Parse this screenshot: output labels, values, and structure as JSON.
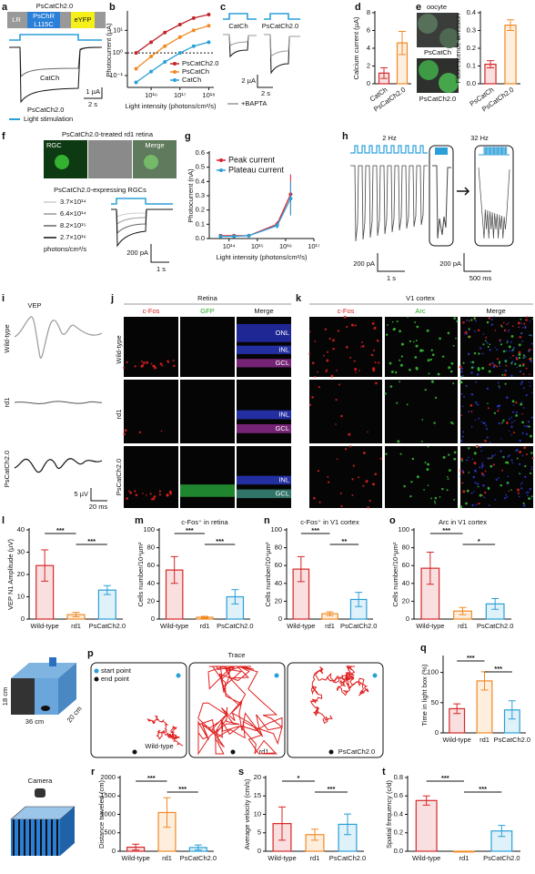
{
  "panel_a": {
    "label": "a",
    "title": "PsCatCh2.0",
    "construct": [
      "LR",
      "PsChR",
      "L115C",
      "eYFP"
    ],
    "traces": [
      "CatCh",
      "PsCatCh2.0"
    ],
    "scale": [
      "1 µA",
      "2 s"
    ],
    "legend": "Light stimulation"
  },
  "panel_c": {
    "label": "c",
    "traces": [
      "CatCh",
      "PsCatCh2.0"
    ],
    "scale": [
      "2 µA",
      "2 s"
    ],
    "legend": "+BAPTA"
  },
  "panel_e": {
    "images": [
      "oocyte",
      "PsCatCh",
      "PsCatCh2.0"
    ]
  },
  "panel_f": {
    "label": "f",
    "title": "PsCatCh2.0-treated rd1 retina",
    "images": [
      "RGC",
      "Merge"
    ],
    "subtitle": "PsCatCh2.0-expressing RGCs",
    "intensities": [
      "3.7×10¹⁴",
      "6.4×10¹⁴",
      "8.2×10¹⁵",
      "2.7×10¹⁶"
    ],
    "unit": "photons/cm²/s",
    "scale": [
      "200 pA",
      "1 s"
    ]
  },
  "panel_h": {
    "label": "h",
    "rates": [
      "2 Hz",
      "32 Hz"
    ],
    "scale": [
      "200 pA",
      "1 s",
      "200 pA",
      "500 ms"
    ]
  },
  "panel_i": {
    "label": "i",
    "title": "VEP",
    "rows": [
      "Wild-type",
      "rd1",
      "PsCatCh2.0"
    ],
    "scale": [
      "5 µV",
      "20 ms"
    ]
  },
  "panel_j": {
    "label": "j",
    "title": "Retina",
    "columns": [
      "c-Fos",
      "GFP",
      "Merge"
    ],
    "rows": [
      "Wild-type",
      "rd1",
      "PsCatCh2.0"
    ],
    "layers": [
      "ONL",
      "INL",
      "GCL",
      "INL",
      "GCL",
      "INL",
      "GCL"
    ]
  },
  "panel_k": {
    "label": "k",
    "title": "V1 cortex",
    "columns": [
      "c-Fos",
      "Arc",
      "Merge"
    ]
  },
  "panel_p": {
    "label": "p",
    "title": "Trace",
    "legend": [
      "start point",
      "end point"
    ],
    "groups": [
      "Wild-type",
      "rd1",
      "PsCatCh2.0"
    ]
  },
  "box": {
    "dims": [
      "18 cm",
      "36 cm",
      "20 cm"
    ],
    "camera": "Camera"
  },
  "charts": [
    {
      "label": "b",
      "type": "line",
      "ylabel": "Photocurrent (µA)",
      "xlabel": "Light intensity (photons/cm²/s)",
      "xscale": "log",
      "yscale": "log",
      "x": [
        3000000000000000.0,
        1e+16,
        3e+16,
        1e+17,
        3e+17,
        1e+18
      ],
      "xlim": [
        1500000000000000.0,
        1.5e+18
      ],
      "xticks": [
        {
          "value": 1e+16,
          "label": "10¹⁶"
        },
        {
          "value": 1e+17,
          "label": "10¹⁷"
        },
        {
          "value": 1e+18,
          "label": "10¹⁸"
        }
      ],
      "ylim": [
        0.03,
        60
      ],
      "yticks": [
        {
          "value": 0.1,
          "label": "10⁻¹"
        },
        {
          "value": 1,
          "label": "10⁰"
        },
        {
          "value": 10,
          "label": "10¹"
        }
      ],
      "hline": 1,
      "legend": "lower right",
      "series": [
        {
          "name": "PsCatCh2.0",
          "color": "#c0272d",
          "values": [
            1,
            3,
            8,
            18,
            35,
            50
          ]
        },
        {
          "name": "PsCatCh",
          "color": "#f08a24",
          "values": [
            0.2,
            0.7,
            2,
            5,
            10,
            16
          ]
        },
        {
          "name": "CatCh",
          "color": "#2a9fd8",
          "values": [
            0.05,
            0.15,
            0.4,
            1,
            2,
            3
          ]
        }
      ]
    },
    {
      "label": "d",
      "type": "bar",
      "ylabel": "Calcium current (µA)",
      "categories": [
        "CatCh",
        "PsCatCh2.0"
      ],
      "values": [
        1.2,
        4.6
      ],
      "errors": [
        0.6,
        1.3
      ],
      "colors": [
        "#d62728",
        "#f08a24"
      ],
      "ylim": [
        0,
        8
      ],
      "yticks": [
        0,
        2,
        4,
        6,
        8
      ],
      "annotations": []
    },
    {
      "label": "e",
      "type": "bar",
      "ylabel": "Fluorescence emission",
      "categories": [
        "PsCatCh",
        "PsCatCh2.0"
      ],
      "values": [
        0.11,
        0.33
      ],
      "errors": [
        0.02,
        0.03
      ],
      "colors": [
        "#d62728",
        "#f08a24"
      ],
      "ylim": [
        0,
        0.4
      ],
      "yticks": [
        {
          "value": 0,
          "label": "0.0"
        },
        0.1,
        0.2,
        0.3,
        0.4
      ],
      "annotations": []
    },
    {
      "label": "g",
      "type": "line",
      "ylabel": "Photocurrent (nA)",
      "xlabel": "Light intensity (photons/cm²/s)",
      "xscale": "log",
      "x": [
        50000000000000.0,
        150000000000000.0,
        500000000000000.0,
        5000000000000000.0,
        1.5e+16
      ],
      "xlim": [
        20000000000000.0,
        1e+17
      ],
      "xticks": [
        {
          "value": 100000000000000.0,
          "label": "10¹⁴"
        },
        {
          "value": 1000000000000000.0,
          "label": "10¹⁵"
        },
        {
          "value": 1e+16,
          "label": "10¹⁶"
        },
        {
          "value": 1e+17,
          "label": "10¹⁷"
        }
      ],
      "ylim": [
        0,
        0.6
      ],
      "yticks": [
        {
          "value": 0,
          "label": "0.0"
        },
        0.1,
        0.2,
        0.3,
        0.4,
        0.5,
        0.6
      ],
      "legend": "upper left",
      "series": [
        {
          "name": "Peak current",
          "color": "#e0212a",
          "values": [
            0.02,
            0.02,
            0.02,
            0.1,
            0.31
          ],
          "errors": [
            0.005,
            0.005,
            0.005,
            0.02,
            0.14
          ]
        },
        {
          "name": "Plateau current",
          "color": "#2a9fd8",
          "values": [
            0.015,
            0.015,
            0.02,
            0.09,
            0.28
          ],
          "errors": [
            0.005,
            0.005,
            0.005,
            0.02,
            0.12
          ]
        }
      ]
    },
    {
      "label": "l",
      "type": "bar",
      "ylabel": "VEP N1 Amplitude (µV)",
      "categories": [
        "Wild-type",
        "rd1",
        "PsCatCh2.0"
      ],
      "values": [
        24,
        2,
        13
      ],
      "errors": [
        7,
        1,
        2
      ],
      "colors": [
        "#d62728",
        "#f08a24",
        "#2a9fd8"
      ],
      "ylim": [
        0,
        40
      ],
      "yticks": [
        0,
        10,
        20,
        30,
        40
      ],
      "annotations": [
        "***",
        "***"
      ]
    },
    {
      "label": "m",
      "type": "bar",
      "title": "c-Fos⁺ in retina",
      "ylabel": "Cells number/10⁴µm²",
      "categories": [
        "Wild-type",
        "rd1",
        "PsCatCh2.0"
      ],
      "values": [
        55,
        2,
        25
      ],
      "errors": [
        15,
        1,
        8
      ],
      "colors": [
        "#d62728",
        "#f08a24",
        "#2a9fd8"
      ],
      "ylim": [
        0,
        100
      ],
      "yticks": [
        0,
        20,
        40,
        60,
        80,
        100
      ],
      "annotations": [
        "***",
        "***"
      ]
    },
    {
      "label": "n",
      "type": "bar",
      "title": "c-Fos⁺ in V1 cortex",
      "ylabel": "Cells number/10⁴µm²",
      "categories": [
        "Wild-type",
        "rd1",
        "PsCatCh2.0"
      ],
      "values": [
        56,
        6,
        22
      ],
      "errors": [
        14,
        2,
        8
      ],
      "colors": [
        "#d62728",
        "#f08a24",
        "#2a9fd8"
      ],
      "ylim": [
        0,
        100
      ],
      "yticks": [
        0,
        20,
        40,
        60,
        80,
        100
      ],
      "annotations": [
        "***",
        "**"
      ]
    },
    {
      "label": "o",
      "type": "bar",
      "title": "Arc in V1 cortex",
      "ylabel": "Cells number/10⁴µm²",
      "categories": [
        "Wild-type",
        "rd1",
        "PsCatCh2.0"
      ],
      "values": [
        57,
        9,
        17
      ],
      "errors": [
        18,
        4,
        6
      ],
      "colors": [
        "#d62728",
        "#f08a24",
        "#2a9fd8"
      ],
      "ylim": [
        0,
        100
      ],
      "yticks": [
        0,
        20,
        40,
        60,
        80,
        100
      ],
      "annotations": [
        "***",
        "*"
      ]
    },
    {
      "label": "q",
      "type": "bar",
      "ylabel": "Time in light box (%)",
      "categories": [
        "Wild-type",
        "rd1",
        "PsCatCh2.0"
      ],
      "values": [
        40,
        86,
        38
      ],
      "errors": [
        8,
        15,
        15
      ],
      "colors": [
        "#d62728",
        "#f08a24",
        "#2a9fd8"
      ],
      "ylim": [
        0,
        125
      ],
      "yticks": [
        0,
        50,
        100
      ],
      "annotations": [
        "***",
        "***"
      ]
    },
    {
      "label": "r",
      "type": "bar",
      "ylabel": "Distance traveled (cm)",
      "categories": [
        "Wild-type",
        "rd1",
        "PsCatCh2.0"
      ],
      "values": [
        110,
        1050,
        100
      ],
      "errors": [
        80,
        400,
        70
      ],
      "colors": [
        "#d62728",
        "#f08a24",
        "#2a9fd8"
      ],
      "ylim": [
        0,
        2000
      ],
      "yticks": [
        0,
        500,
        1000,
        1500,
        2000
      ],
      "annotations": [
        "***",
        "***"
      ]
    },
    {
      "label": "s",
      "type": "bar",
      "ylabel": "Average velocity (cm/s)",
      "categories": [
        "Wild-type",
        "rd1",
        "PsCatCh2.0"
      ],
      "values": [
        7.5,
        4.5,
        7.3
      ],
      "errors": [
        4.5,
        1.5,
        2.8
      ],
      "colors": [
        "#d62728",
        "#f08a24",
        "#2a9fd8"
      ],
      "ylim": [
        0,
        20
      ],
      "yticks": [
        0,
        5,
        10,
        15,
        20
      ],
      "annotations": [
        "*",
        "***"
      ]
    },
    {
      "label": "t",
      "type": "bar",
      "ylabel": "Spatial frequency (c/d)",
      "categories": [
        "Wild-type",
        "rd1",
        "PsCatCh2.0"
      ],
      "values": [
        0.55,
        0,
        0.22
      ],
      "errors": [
        0.05,
        0,
        0.06
      ],
      "colors": [
        "#d62728",
        "#f08a24",
        "#2a9fd8"
      ],
      "ylim": [
        0,
        0.8
      ],
      "yticks": [
        {
          "value": 0,
          "label": "0.0"
        },
        0.2,
        0.4,
        0.6,
        0.8
      ],
      "annotations": [
        "***",
        "***"
      ]
    }
  ]
}
